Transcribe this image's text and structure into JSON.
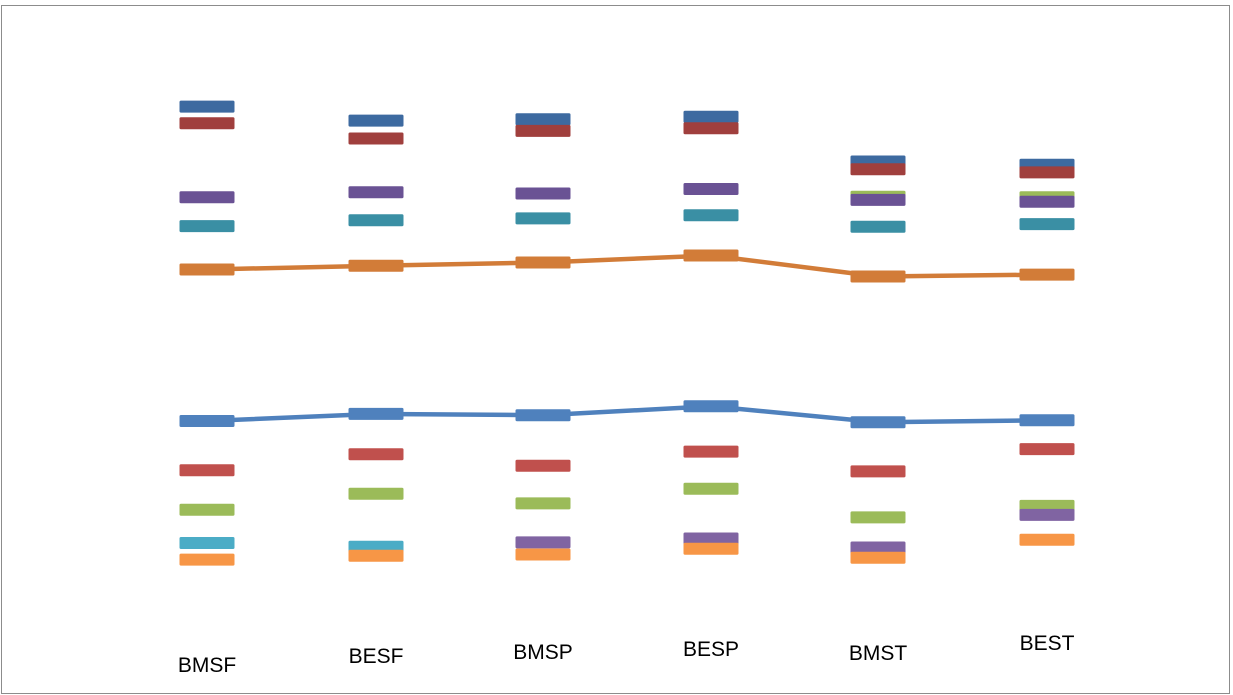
{
  "chart_data": {
    "type": "line",
    "categories": [
      "BMSF",
      "BESF",
      "BMSP",
      "BESP",
      "BMST",
      "BEST"
    ],
    "ylim": [
      0,
      100
    ],
    "grid": false,
    "legend": "none",
    "upper_series": [
      {
        "color": "#3d6aa0",
        "values": [
          88.8,
          86.6,
          86.8,
          87.2,
          80.2,
          79.7
        ],
        "line": false
      },
      {
        "color": "#a03f3d",
        "values": [
          86.2,
          83.8,
          85.0,
          85.4,
          79.0,
          78.5
        ],
        "line": false
      },
      {
        "color": "#9bbb59",
        "values": [
          null,
          null,
          null,
          null,
          74.7,
          74.6
        ],
        "line": false
      },
      {
        "color": "#6a5294",
        "values": [
          74.6,
          75.4,
          75.2,
          75.9,
          74.2,
          73.9
        ],
        "line": false
      },
      {
        "color": "#3a8fa4",
        "values": [
          70.1,
          71.0,
          71.3,
          71.8,
          70.0,
          70.4
        ],
        "line": false
      },
      {
        "color": "#d27c38",
        "values": [
          63.3,
          63.9,
          64.4,
          65.5,
          62.2,
          62.5
        ],
        "line": true
      }
    ],
    "lower_series": [
      {
        "color": "#4f81bd",
        "values": [
          39.6,
          40.7,
          40.5,
          41.9,
          39.4,
          39.7
        ],
        "line": true
      },
      {
        "color": "#c0504d",
        "values": [
          31.9,
          34.4,
          32.6,
          34.8,
          31.7,
          35.2
        ],
        "line": false
      },
      {
        "color": "#9bbb59",
        "values": [
          25.7,
          28.2,
          26.7,
          29.0,
          24.5,
          26.3
        ],
        "line": false
      },
      {
        "color": "#8064a2",
        "values": [
          null,
          null,
          20.6,
          21.2,
          19.8,
          24.9
        ],
        "line": false
      },
      {
        "color": "#4bacc6",
        "values": [
          20.5,
          19.9,
          null,
          null,
          null,
          null
        ],
        "line": false
      },
      {
        "color": "#f79646",
        "values": [
          17.9,
          18.5,
          18.7,
          19.6,
          18.2,
          21.0
        ],
        "line": false
      }
    ]
  }
}
